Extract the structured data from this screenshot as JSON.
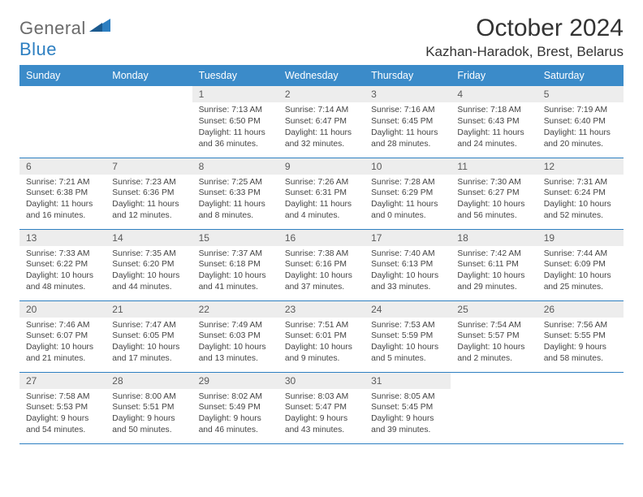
{
  "brand": {
    "name_a": "General",
    "name_b": "Blue"
  },
  "title": "October 2024",
  "location": "Kazhan-Haradok, Brest, Belarus",
  "colors": {
    "header_bg": "#3b8bc9",
    "header_text": "#ffffff",
    "row_border": "#2d7fc1",
    "daynum_bg": "#ededed",
    "brand_gray": "#6b6b6b",
    "brand_blue": "#2d7fc1"
  },
  "weekdays": [
    "Sunday",
    "Monday",
    "Tuesday",
    "Wednesday",
    "Thursday",
    "Friday",
    "Saturday"
  ],
  "weeks": [
    [
      {
        "n": "",
        "empty": true
      },
      {
        "n": "",
        "empty": true
      },
      {
        "n": "1",
        "sunrise": "7:13 AM",
        "sunset": "6:50 PM",
        "daylight": "11 hours and 36 minutes."
      },
      {
        "n": "2",
        "sunrise": "7:14 AM",
        "sunset": "6:47 PM",
        "daylight": "11 hours and 32 minutes."
      },
      {
        "n": "3",
        "sunrise": "7:16 AM",
        "sunset": "6:45 PM",
        "daylight": "11 hours and 28 minutes."
      },
      {
        "n": "4",
        "sunrise": "7:18 AM",
        "sunset": "6:43 PM",
        "daylight": "11 hours and 24 minutes."
      },
      {
        "n": "5",
        "sunrise": "7:19 AM",
        "sunset": "6:40 PM",
        "daylight": "11 hours and 20 minutes."
      }
    ],
    [
      {
        "n": "6",
        "sunrise": "7:21 AM",
        "sunset": "6:38 PM",
        "daylight": "11 hours and 16 minutes."
      },
      {
        "n": "7",
        "sunrise": "7:23 AM",
        "sunset": "6:36 PM",
        "daylight": "11 hours and 12 minutes."
      },
      {
        "n": "8",
        "sunrise": "7:25 AM",
        "sunset": "6:33 PM",
        "daylight": "11 hours and 8 minutes."
      },
      {
        "n": "9",
        "sunrise": "7:26 AM",
        "sunset": "6:31 PM",
        "daylight": "11 hours and 4 minutes."
      },
      {
        "n": "10",
        "sunrise": "7:28 AM",
        "sunset": "6:29 PM",
        "daylight": "11 hours and 0 minutes."
      },
      {
        "n": "11",
        "sunrise": "7:30 AM",
        "sunset": "6:27 PM",
        "daylight": "10 hours and 56 minutes."
      },
      {
        "n": "12",
        "sunrise": "7:31 AM",
        "sunset": "6:24 PM",
        "daylight": "10 hours and 52 minutes."
      }
    ],
    [
      {
        "n": "13",
        "sunrise": "7:33 AM",
        "sunset": "6:22 PM",
        "daylight": "10 hours and 48 minutes."
      },
      {
        "n": "14",
        "sunrise": "7:35 AM",
        "sunset": "6:20 PM",
        "daylight": "10 hours and 44 minutes."
      },
      {
        "n": "15",
        "sunrise": "7:37 AM",
        "sunset": "6:18 PM",
        "daylight": "10 hours and 41 minutes."
      },
      {
        "n": "16",
        "sunrise": "7:38 AM",
        "sunset": "6:16 PM",
        "daylight": "10 hours and 37 minutes."
      },
      {
        "n": "17",
        "sunrise": "7:40 AM",
        "sunset": "6:13 PM",
        "daylight": "10 hours and 33 minutes."
      },
      {
        "n": "18",
        "sunrise": "7:42 AM",
        "sunset": "6:11 PM",
        "daylight": "10 hours and 29 minutes."
      },
      {
        "n": "19",
        "sunrise": "7:44 AM",
        "sunset": "6:09 PM",
        "daylight": "10 hours and 25 minutes."
      }
    ],
    [
      {
        "n": "20",
        "sunrise": "7:46 AM",
        "sunset": "6:07 PM",
        "daylight": "10 hours and 21 minutes."
      },
      {
        "n": "21",
        "sunrise": "7:47 AM",
        "sunset": "6:05 PM",
        "daylight": "10 hours and 17 minutes."
      },
      {
        "n": "22",
        "sunrise": "7:49 AM",
        "sunset": "6:03 PM",
        "daylight": "10 hours and 13 minutes."
      },
      {
        "n": "23",
        "sunrise": "7:51 AM",
        "sunset": "6:01 PM",
        "daylight": "10 hours and 9 minutes."
      },
      {
        "n": "24",
        "sunrise": "7:53 AM",
        "sunset": "5:59 PM",
        "daylight": "10 hours and 5 minutes."
      },
      {
        "n": "25",
        "sunrise": "7:54 AM",
        "sunset": "5:57 PM",
        "daylight": "10 hours and 2 minutes."
      },
      {
        "n": "26",
        "sunrise": "7:56 AM",
        "sunset": "5:55 PM",
        "daylight": "9 hours and 58 minutes."
      }
    ],
    [
      {
        "n": "27",
        "sunrise": "7:58 AM",
        "sunset": "5:53 PM",
        "daylight": "9 hours and 54 minutes."
      },
      {
        "n": "28",
        "sunrise": "8:00 AM",
        "sunset": "5:51 PM",
        "daylight": "9 hours and 50 minutes."
      },
      {
        "n": "29",
        "sunrise": "8:02 AM",
        "sunset": "5:49 PM",
        "daylight": "9 hours and 46 minutes."
      },
      {
        "n": "30",
        "sunrise": "8:03 AM",
        "sunset": "5:47 PM",
        "daylight": "9 hours and 43 minutes."
      },
      {
        "n": "31",
        "sunrise": "8:05 AM",
        "sunset": "5:45 PM",
        "daylight": "9 hours and 39 minutes."
      },
      {
        "n": "",
        "empty": true
      },
      {
        "n": "",
        "empty": true
      }
    ]
  ]
}
